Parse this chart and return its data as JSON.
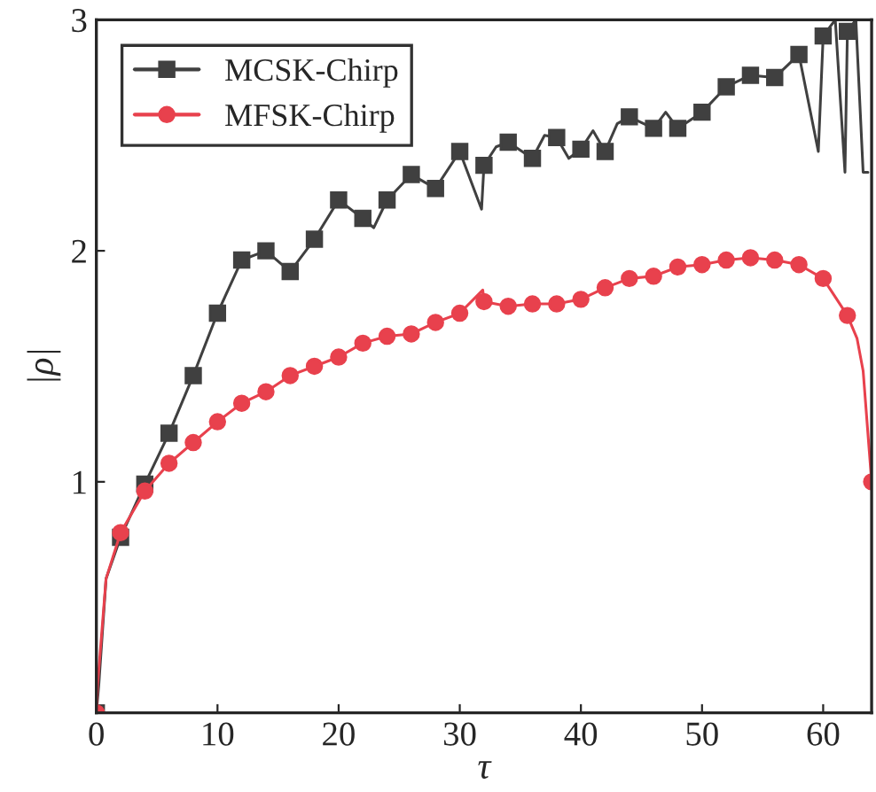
{
  "chart_data": {
    "type": "line",
    "xlabel": "τ",
    "ylabel": "|ρ|",
    "xlim": [
      0,
      64
    ],
    "ylim": [
      0,
      3
    ],
    "xticks": [
      0,
      10,
      20,
      30,
      40,
      50,
      60
    ],
    "yticks": [
      {
        "value": 0,
        "label": null
      },
      1,
      2,
      3
    ],
    "grid": false,
    "legend": "top left",
    "line_style": "solid",
    "series": [
      {
        "name": "MCSK-Chirp",
        "color": "#404040",
        "marker": "square",
        "x": [
          0,
          0.2,
          0.8,
          2,
          4,
          6,
          8,
          10,
          12,
          14,
          16,
          18,
          20,
          22,
          22.9,
          24,
          26,
          28,
          30,
          31.8,
          32,
          33,
          34,
          36,
          37,
          38,
          39,
          40,
          41,
          42,
          43,
          44,
          46,
          47,
          48,
          50,
          52,
          54,
          56,
          58,
          59.6,
          60,
          61,
          61.8,
          62,
          62.7,
          63.3,
          63.7
        ],
        "values": [
          0,
          0.12,
          0.58,
          0.76,
          0.99,
          1.21,
          1.46,
          1.73,
          1.96,
          2.0,
          1.91,
          2.05,
          2.22,
          2.14,
          2.1,
          2.22,
          2.33,
          2.27,
          2.43,
          2.18,
          2.37,
          2.45,
          2.47,
          2.4,
          2.5,
          2.49,
          2.4,
          2.44,
          2.52,
          2.43,
          2.55,
          2.58,
          2.53,
          2.6,
          2.53,
          2.6,
          2.71,
          2.76,
          2.75,
          2.85,
          2.43,
          2.93,
          3.0,
          2.34,
          2.95,
          3.0,
          2.34,
          2.34
        ]
      },
      {
        "name": "MFSK-Chirp",
        "color": "#e8414d",
        "marker": "circle",
        "x": [
          0,
          0.1,
          0.8,
          2,
          4,
          6,
          8,
          10,
          12,
          14,
          16,
          18,
          20,
          22,
          24,
          26,
          28,
          30,
          31.9,
          32,
          34,
          36,
          38,
          40,
          42,
          44,
          46,
          48,
          50,
          52,
          54,
          56,
          58,
          60,
          62,
          62.8,
          63.3,
          64
        ],
        "values": [
          0,
          0.12,
          0.58,
          0.78,
          0.96,
          1.08,
          1.17,
          1.26,
          1.34,
          1.39,
          1.46,
          1.5,
          1.54,
          1.6,
          1.63,
          1.64,
          1.69,
          1.73,
          1.83,
          1.78,
          1.76,
          1.77,
          1.77,
          1.79,
          1.84,
          1.88,
          1.89,
          1.93,
          1.94,
          1.96,
          1.97,
          1.96,
          1.94,
          1.88,
          1.72,
          1.62,
          1.48,
          1.0
        ]
      }
    ]
  }
}
